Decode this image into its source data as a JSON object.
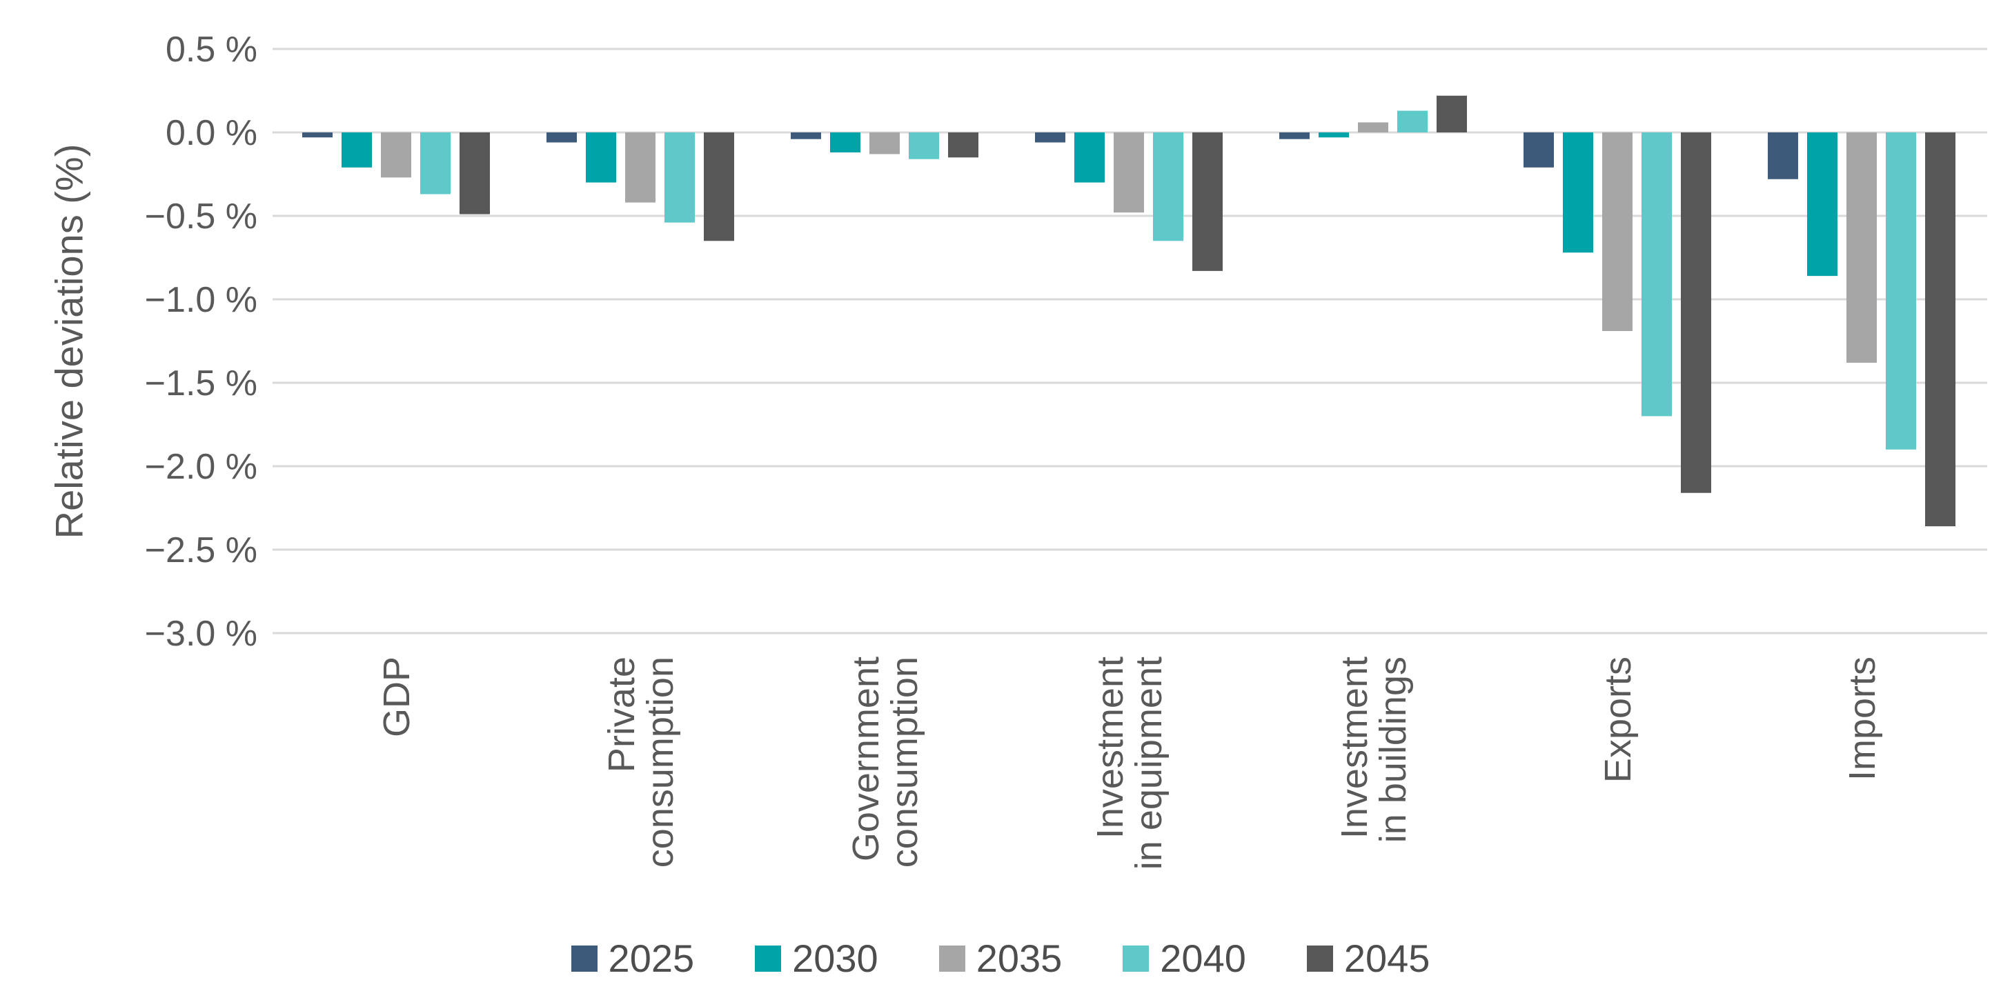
{
  "chart_data": {
    "type": "bar",
    "title": "",
    "xlabel": "",
    "ylabel": "Relative deviations (%)",
    "categories": [
      [
        "GDP"
      ],
      [
        "Private",
        "consumption"
      ],
      [
        "Government",
        "consumption"
      ],
      [
        "Investment",
        "in equipment"
      ],
      [
        "Investment",
        "in buildings"
      ],
      [
        "Exports"
      ],
      [
        "Imports"
      ]
    ],
    "series": [
      {
        "name": "2025",
        "color": "#3D5A7A",
        "values": [
          -0.03,
          -0.06,
          -0.04,
          -0.06,
          -0.04,
          -0.21,
          -0.28
        ]
      },
      {
        "name": "2030",
        "color": "#00A3A8",
        "values": [
          -0.21,
          -0.3,
          -0.12,
          -0.3,
          -0.03,
          -0.72,
          -0.86
        ]
      },
      {
        "name": "2035",
        "color": "#A6A6A6",
        "values": [
          -0.27,
          -0.42,
          -0.13,
          -0.48,
          0.06,
          -1.19,
          -1.38
        ]
      },
      {
        "name": "2040",
        "color": "#5FC9CA",
        "values": [
          -0.37,
          -0.54,
          -0.16,
          -0.65,
          0.13,
          -1.7,
          -1.9
        ]
      },
      {
        "name": "2045",
        "color": "#575757",
        "values": [
          -0.49,
          -0.65,
          -0.15,
          -0.83,
          0.22,
          -2.16,
          -2.36
        ]
      }
    ],
    "ylim": [
      -3.0,
      0.5
    ],
    "ytick_step": 0.5,
    "ytick_values": [
      0.5,
      0.0,
      -0.5,
      -1.0,
      -1.5,
      -2.0,
      -2.5,
      -3.0
    ],
    "ytick_labels": [
      "0.5 %",
      "0.0 %",
      "−0.5 %",
      "−1.0 %",
      "−1.5 %",
      "−2.0 %",
      "−2.5 %",
      "−3.0 %"
    ],
    "grid": true,
    "legend_position": "bottom",
    "colors": {
      "grid": "#D9D9D9",
      "axis_text": "#595959",
      "category_text": "#595959",
      "legend_text": "#4D4D4D",
      "background": "#FFFFFF"
    }
  }
}
